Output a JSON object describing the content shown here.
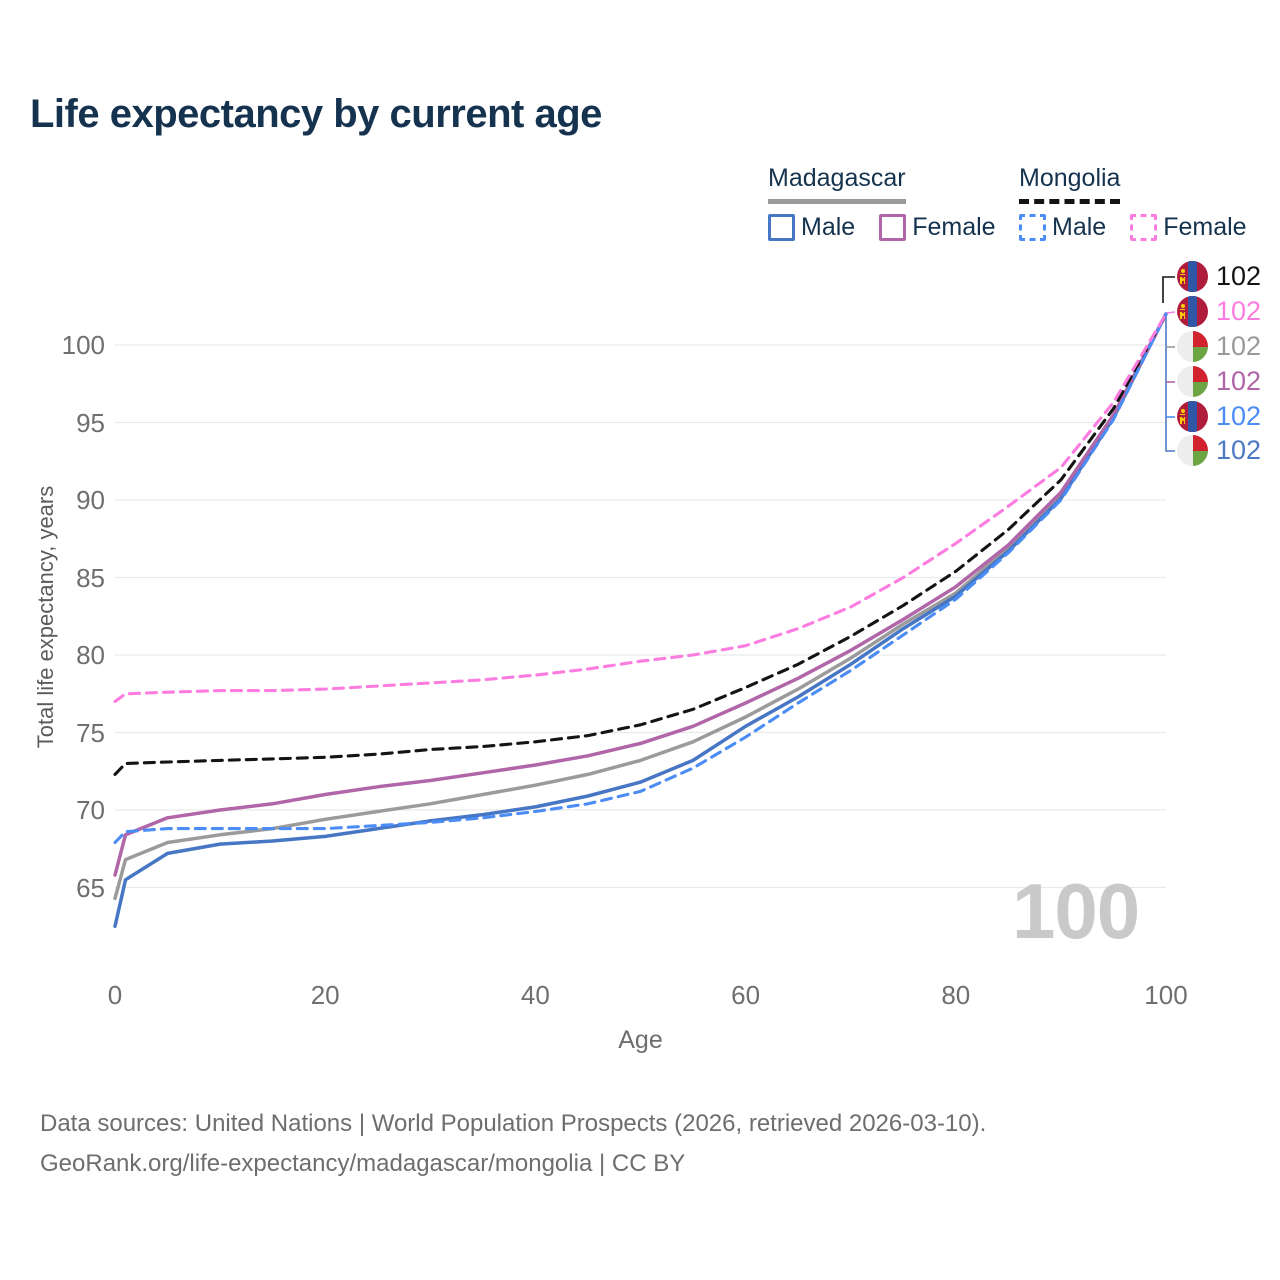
{
  "page": {
    "title": "Life expectancy by current age",
    "watermark_age": "100",
    "footer_line1": "Data sources: United Nations | World Population Prospects (2026, retrieved 2026-03-10).",
    "footer_line2": "GeoRank.org/life-expectancy/madagascar/mongolia | CC BY"
  },
  "legend": {
    "groups": [
      {
        "label": "Madagascar",
        "underline": "solid",
        "underline_color": "#9b9b9b",
        "items": [
          {
            "label": "Male",
            "box_color": "#4676c4",
            "box_style": "solid"
          },
          {
            "label": "Female",
            "box_color": "#b066a8",
            "box_style": "solid"
          }
        ]
      },
      {
        "label": "Mongolia",
        "underline": "dashed",
        "underline_color": "#141414",
        "items": [
          {
            "label": "Male",
            "box_color": "#4b8cf5",
            "box_style": "dashed"
          },
          {
            "label": "Female",
            "box_color": "#fc7ce0",
            "box_style": "dashed"
          }
        ]
      }
    ]
  },
  "chart_data": {
    "type": "line",
    "title": "Life expectancy by current age",
    "xlabel": "Age",
    "ylabel": "Total life expectancy, years",
    "x_ticks": [
      0,
      20,
      40,
      60,
      80,
      100
    ],
    "y_ticks": [
      65,
      70,
      75,
      80,
      85,
      90,
      95,
      100
    ],
    "xlim": [
      0,
      100
    ],
    "ylim": [
      62,
      102.5
    ],
    "grid": "horizontal-only",
    "grid_color": "#e9e9e9",
    "x": [
      0,
      1,
      5,
      10,
      15,
      20,
      25,
      30,
      35,
      40,
      45,
      50,
      55,
      60,
      65,
      70,
      75,
      80,
      85,
      90,
      95,
      100
    ],
    "series": [
      {
        "name": "Madagascar — Both sexes",
        "country": "Madagascar",
        "sex": "both",
        "color": "#9b9b9b",
        "dash": "solid",
        "values": [
          64.3,
          66.8,
          67.9,
          68.4,
          68.8,
          69.4,
          69.9,
          70.4,
          71.0,
          71.6,
          72.3,
          73.2,
          74.4,
          76.0,
          77.8,
          79.8,
          82.0,
          84.0,
          86.9,
          90.3,
          95.4,
          102
        ]
      },
      {
        "name": "Madagascar — Male",
        "country": "Madagascar",
        "sex": "male",
        "color": "#4676c4",
        "dash": "solid",
        "values": [
          62.5,
          65.5,
          67.2,
          67.8,
          68.0,
          68.3,
          68.8,
          69.3,
          69.7,
          70.2,
          70.9,
          71.8,
          73.2,
          75.4,
          77.3,
          79.4,
          81.7,
          83.8,
          86.7,
          90.1,
          95.3,
          102
        ]
      },
      {
        "name": "Madagascar — Female",
        "country": "Madagascar",
        "sex": "female",
        "color": "#b066a8",
        "dash": "solid",
        "values": [
          65.8,
          68.4,
          69.5,
          70.0,
          70.4,
          71.0,
          71.5,
          71.9,
          72.4,
          72.9,
          73.5,
          74.3,
          75.4,
          76.9,
          78.5,
          80.3,
          82.3,
          84.4,
          87.1,
          90.5,
          95.5,
          102
        ]
      },
      {
        "name": "Mongolia — Both sexes",
        "country": "Mongolia",
        "sex": "both",
        "color": "#141414",
        "dash": "dashed",
        "values": [
          72.3,
          73.0,
          73.1,
          73.2,
          73.3,
          73.4,
          73.6,
          73.9,
          74.1,
          74.4,
          74.8,
          75.5,
          76.5,
          77.9,
          79.4,
          81.2,
          83.2,
          85.4,
          88.1,
          91.3,
          95.9,
          102
        ]
      },
      {
        "name": "Mongolia — Male",
        "country": "Mongolia",
        "sex": "male",
        "color": "#4b8cf5",
        "dash": "dashed",
        "values": [
          67.9,
          68.6,
          68.8,
          68.8,
          68.8,
          68.8,
          69.0,
          69.2,
          69.5,
          69.9,
          70.4,
          71.2,
          72.7,
          74.7,
          76.9,
          79.0,
          81.3,
          83.6,
          86.6,
          90.0,
          95.2,
          102
        ]
      },
      {
        "name": "Mongolia — Female",
        "country": "Mongolia",
        "sex": "female",
        "color": "#fc7ce0",
        "dash": "dashed",
        "values": [
          77.0,
          77.5,
          77.6,
          77.7,
          77.7,
          77.8,
          78.0,
          78.2,
          78.4,
          78.7,
          79.1,
          79.6,
          80.0,
          80.6,
          81.7,
          83.1,
          85.0,
          87.2,
          89.6,
          92.1,
          96.3,
          102
        ]
      }
    ],
    "end_labels": [
      {
        "flag": "mongolia",
        "value": "102",
        "color": "#141414"
      },
      {
        "flag": "mongolia",
        "value": "102",
        "color": "#fc7ce0"
      },
      {
        "flag": "madagascar",
        "value": "102",
        "color": "#9a9a9a"
      },
      {
        "flag": "madagascar",
        "value": "102",
        "color": "#b066a8"
      },
      {
        "flag": "mongolia",
        "value": "102",
        "color": "#4b8cf5"
      },
      {
        "flag": "madagascar",
        "value": "102",
        "color": "#4e79c5"
      }
    ],
    "flag_colors": {
      "mongolia_red": "#b01c3c",
      "mongolia_blue": "#2f57a5",
      "mongolia_yellow": "#f9cf02",
      "madagascar_white": "#ededed",
      "madagascar_red": "#d0232e",
      "madagascar_green": "#6da544"
    }
  }
}
